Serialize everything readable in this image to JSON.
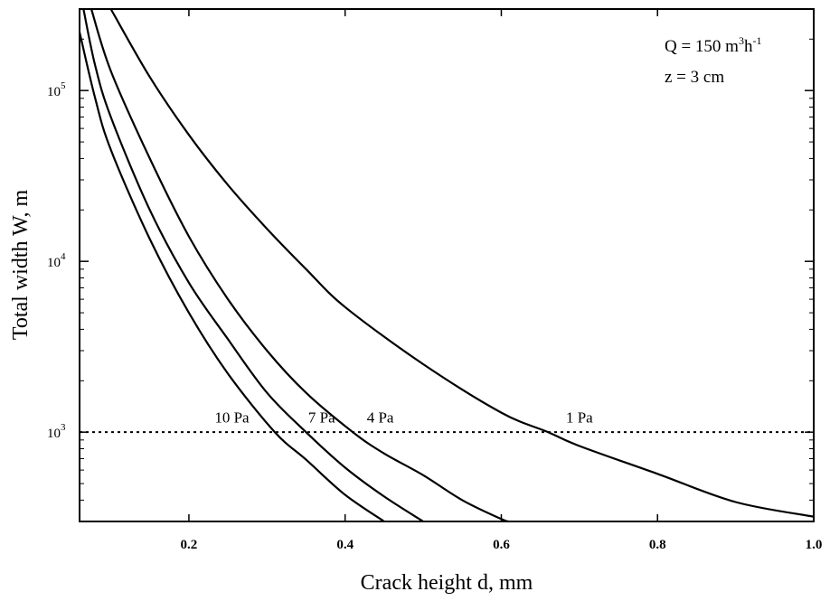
{
  "chart_data": {
    "type": "line",
    "title": "",
    "xlabel": "Crack height d, mm",
    "ylabel": "Total width W, m",
    "x_scale": "linear",
    "y_scale": "log",
    "xlim": [
      0.06,
      1.0
    ],
    "ylim": [
      300,
      300000
    ],
    "grid": false,
    "x_ticks": [
      {
        "value": 0.2,
        "label": "0.2"
      },
      {
        "value": 0.4,
        "label": "0.4"
      },
      {
        "value": 0.6,
        "label": "0.6"
      },
      {
        "value": 0.8,
        "label": "0.8"
      },
      {
        "value": 1.0,
        "label": "1.0"
      }
    ],
    "y_ticks": [
      {
        "value": 1000,
        "base": "10",
        "exp": "3"
      },
      {
        "value": 10000,
        "base": "10",
        "exp": "4"
      },
      {
        "value": 100000,
        "base": "10",
        "exp": "5"
      }
    ],
    "annotation": {
      "line1": {
        "prefix": "Q = 150 m",
        "sup1": "3",
        "mid": "h",
        "sup2": "-1"
      },
      "line2": "z = 3 cm"
    },
    "reference_line": {
      "y": 1000,
      "style": "dotted"
    },
    "series": [
      {
        "name": "1 Pa",
        "color": "#000000",
        "x": [
          0.1,
          0.15,
          0.2,
          0.25,
          0.3,
          0.35,
          0.4,
          0.5,
          0.6,
          0.66,
          0.7,
          0.8,
          0.9,
          1.0
        ],
        "y": [
          300000,
          120000,
          55000,
          28000,
          15500,
          9000,
          5400,
          2500,
          1300,
          1000,
          830,
          570,
          390,
          320
        ]
      },
      {
        "name": "4 Pa",
        "color": "#000000",
        "x": [
          0.075,
          0.1,
          0.15,
          0.2,
          0.25,
          0.3,
          0.35,
          0.41,
          0.45,
          0.5,
          0.55,
          0.6,
          0.61
        ],
        "y": [
          300000,
          130000,
          40000,
          14000,
          6000,
          3000,
          1700,
          1000,
          750,
          560,
          400,
          310,
          300
        ]
      },
      {
        "name": "7 Pa",
        "color": "#000000",
        "x": [
          0.065,
          0.08,
          0.1,
          0.15,
          0.2,
          0.25,
          0.3,
          0.35,
          0.4,
          0.45,
          0.5
        ],
        "y": [
          300000,
          140000,
          70000,
          20000,
          7500,
          3500,
          1700,
          1000,
          620,
          420,
          300
        ]
      },
      {
        "name": "10 Pa",
        "color": "#000000",
        "x": [
          0.06,
          0.08,
          0.1,
          0.15,
          0.2,
          0.25,
          0.31,
          0.35,
          0.4,
          0.45
        ],
        "y": [
          220000,
          90000,
          45000,
          13500,
          5000,
          2200,
          1000,
          690,
          430,
          300
        ]
      }
    ],
    "series_labels": [
      {
        "series": "10 Pa",
        "text": "10 Pa",
        "x": 0.255,
        "y": 1140
      },
      {
        "series": "7 Pa",
        "text": "7 Pa",
        "x": 0.37,
        "y": 1140
      },
      {
        "series": "4 Pa",
        "text": "4 Pa",
        "x": 0.445,
        "y": 1140
      },
      {
        "series": "1 Pa",
        "text": "1 Pa",
        "x": 0.7,
        "y": 1140
      }
    ]
  }
}
